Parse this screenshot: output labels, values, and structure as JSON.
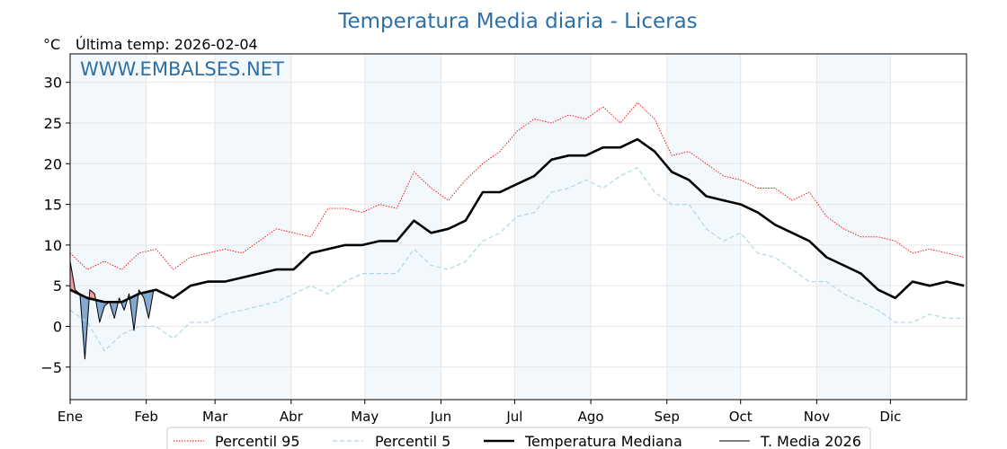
{
  "chart_data": {
    "type": "line",
    "title": "Temperatura Media diaria - Liceras",
    "unit_label": "°C",
    "last_temp": "Última temp: 2026-02-04",
    "watermark": "WWW.EMBALSES.NET",
    "ylim": [
      -9,
      33.5
    ],
    "yticks": [
      30,
      25,
      20,
      15,
      10,
      5,
      0,
      -5
    ],
    "ytick_labels": [
      "30",
      "25",
      "20",
      "15",
      "10",
      "5",
      "0",
      "−5"
    ],
    "months": [
      "Ene",
      "Feb",
      "Mar",
      "Abr",
      "May",
      "Jun",
      "Jul",
      "Ago",
      "Sep",
      "Oct",
      "Nov",
      "Dic"
    ],
    "month_start_days": [
      1,
      32,
      60,
      91,
      121,
      152,
      182,
      213,
      244,
      274,
      305,
      335
    ],
    "grid": true,
    "legend_position": "bottom",
    "series": [
      {
        "name": "Percentil 95",
        "color": "#ff0000",
        "style": "dotted",
        "x": [
          1,
          8,
          15,
          22,
          29,
          36,
          43,
          50,
          57,
          64,
          71,
          78,
          85,
          92,
          99,
          106,
          113,
          120,
          127,
          134,
          141,
          148,
          155,
          162,
          169,
          176,
          183,
          190,
          197,
          204,
          211,
          218,
          225,
          232,
          239,
          246,
          253,
          260,
          267,
          274,
          281,
          288,
          295,
          302,
          309,
          316,
          323,
          330,
          337,
          344,
          351,
          358,
          365
        ],
        "y": [
          9.0,
          7.0,
          8.0,
          7.0,
          9.0,
          9.5,
          7.0,
          8.5,
          9.0,
          9.5,
          9.0,
          10.5,
          12.0,
          11.5,
          11.0,
          14.5,
          14.5,
          14.0,
          15.0,
          14.5,
          19.0,
          17.0,
          15.5,
          18.0,
          20.0,
          21.5,
          24.0,
          25.5,
          25.0,
          26.0,
          25.5,
          27.0,
          25.0,
          27.5,
          25.5,
          21.0,
          21.5,
          20.0,
          18.5,
          18.0,
          17.0,
          17.0,
          15.5,
          16.5,
          13.5,
          12.0,
          11.0,
          11.0,
          10.5,
          9.0,
          9.5,
          9.0,
          8.5
        ]
      },
      {
        "name": "Percentil 5",
        "color": "#add8e6",
        "style": "dashed",
        "x": [
          1,
          8,
          15,
          22,
          29,
          36,
          43,
          50,
          57,
          64,
          71,
          78,
          85,
          92,
          99,
          106,
          113,
          120,
          127,
          134,
          141,
          148,
          155,
          162,
          169,
          176,
          183,
          190,
          197,
          204,
          211,
          218,
          225,
          232,
          239,
          246,
          253,
          260,
          267,
          274,
          281,
          288,
          295,
          302,
          309,
          316,
          323,
          330,
          337,
          344,
          351,
          358,
          365
        ],
        "y": [
          2.0,
          0.5,
          -3.0,
          -1.0,
          0.0,
          0.0,
          -1.5,
          0.5,
          0.5,
          1.5,
          2.0,
          2.5,
          3.0,
          4.0,
          5.0,
          4.0,
          5.5,
          6.5,
          6.5,
          6.5,
          9.5,
          7.5,
          7.0,
          8.0,
          10.5,
          11.5,
          13.5,
          14.0,
          16.5,
          17.0,
          18.0,
          17.0,
          18.5,
          19.5,
          16.5,
          15.0,
          15.0,
          12.0,
          10.5,
          11.5,
          9.0,
          8.5,
          7.0,
          5.5,
          5.5,
          4.0,
          3.0,
          2.0,
          0.5,
          0.5,
          1.5,
          1.0,
          1.0
        ]
      },
      {
        "name": "Temperatura Mediana",
        "color": "#000000",
        "style": "solid-thick",
        "x": [
          1,
          8,
          15,
          22,
          29,
          36,
          43,
          50,
          57,
          64,
          71,
          78,
          85,
          92,
          99,
          106,
          113,
          120,
          127,
          134,
          141,
          148,
          155,
          162,
          169,
          176,
          183,
          190,
          197,
          204,
          211,
          218,
          225,
          232,
          239,
          246,
          253,
          260,
          267,
          274,
          281,
          288,
          295,
          302,
          309,
          316,
          323,
          330,
          337,
          344,
          351,
          358,
          365
        ],
        "y": [
          4.5,
          3.5,
          3.0,
          3.0,
          4.0,
          4.5,
          3.5,
          5.0,
          5.5,
          5.5,
          6.0,
          6.5,
          7.0,
          7.0,
          9.0,
          9.5,
          10.0,
          10.0,
          10.5,
          10.5,
          13.0,
          11.5,
          12.0,
          13.0,
          16.5,
          16.5,
          17.5,
          18.5,
          20.5,
          21.0,
          21.0,
          22.0,
          22.0,
          23.0,
          21.5,
          19.0,
          18.0,
          16.0,
          15.5,
          15.0,
          14.0,
          12.5,
          11.5,
          10.5,
          8.5,
          7.5,
          6.5,
          4.5,
          3.5,
          5.5,
          5.0,
          5.5,
          5.0
        ]
      },
      {
        "name": "T. Media 2026",
        "color": "#000000",
        "style": "solid-thin",
        "fill_below_median": "#5b8fbf",
        "fill_above_median": "#f08080",
        "x": [
          1,
          3,
          5,
          7,
          9,
          11,
          13,
          15,
          17,
          19,
          21,
          23,
          25,
          27,
          29,
          31,
          33,
          35
        ],
        "y": [
          8.0,
          4.5,
          4.0,
          -4.0,
          4.5,
          4.0,
          0.5,
          2.5,
          3.0,
          1.0,
          3.5,
          2.0,
          4.0,
          -0.5,
          4.5,
          3.5,
          1.0,
          4.5
        ]
      }
    ]
  }
}
